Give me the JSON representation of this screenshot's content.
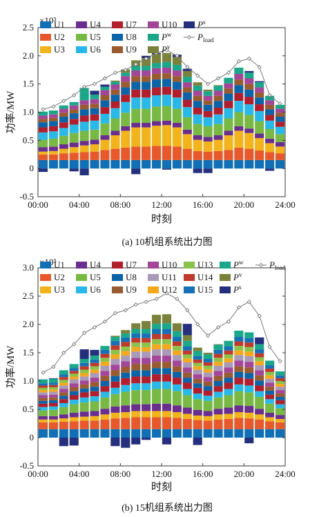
{
  "chart_data": [
    {
      "type": "bar",
      "stacked": true,
      "caption": "(a) 10机组系统出力图",
      "xlabel": "时刻",
      "ylabel": "功率/MW",
      "y_multiplier": "×10³",
      "ylim": [
        -0.5,
        2.5
      ],
      "y_ticks": [
        "-0.5",
        "0",
        "0.5",
        "1.0",
        "1.5",
        "2.0",
        "2.5"
      ],
      "x_ticks": [
        "00:00",
        "04:00",
        "08:00",
        "12:00",
        "16:00",
        "20:00",
        "24:00"
      ],
      "hours": 24,
      "legend_columns": 6,
      "series": [
        {
          "name": "U1",
          "color": "#0f6fb7",
          "values": [
            0.15,
            0.15,
            0.15,
            0.15,
            0.15,
            0.15,
            0.15,
            0.15,
            0.15,
            0.15,
            0.15,
            0.15,
            0.15,
            0.15,
            0.15,
            0.15,
            0.15,
            0.15,
            0.15,
            0.15,
            0.15,
            0.15,
            0.15,
            0.15
          ]
        },
        {
          "name": "U2",
          "color": "#e8582a",
          "values": [
            0.1,
            0.1,
            0.12,
            0.13,
            0.14,
            0.15,
            0.18,
            0.2,
            0.22,
            0.24,
            0.24,
            0.25,
            0.25,
            0.24,
            0.2,
            0.16,
            0.15,
            0.16,
            0.18,
            0.22,
            0.2,
            0.17,
            0.14,
            0.12
          ]
        },
        {
          "name": "U3",
          "color": "#f3b31b",
          "values": [
            0.05,
            0.06,
            0.08,
            0.1,
            0.12,
            0.13,
            0.18,
            0.24,
            0.3,
            0.34,
            0.34,
            0.36,
            0.37,
            0.34,
            0.26,
            0.2,
            0.18,
            0.2,
            0.26,
            0.3,
            0.28,
            0.22,
            0.16,
            0.12
          ]
        },
        {
          "name": "U4",
          "color": "#6a2f8e",
          "values": [
            0.08,
            0.08,
            0.08,
            0.08,
            0.08,
            0.08,
            0.08,
            0.08,
            0.08,
            0.08,
            0.08,
            0.08,
            0.08,
            0.08,
            0.08,
            0.08,
            0.08,
            0.08,
            0.08,
            0.08,
            0.08,
            0.08,
            0.08,
            0.08
          ]
        },
        {
          "name": "U5",
          "color": "#78b943",
          "values": [
            0.13,
            0.14,
            0.15,
            0.17,
            0.18,
            0.18,
            0.21,
            0.22,
            0.24,
            0.25,
            0.25,
            0.26,
            0.26,
            0.25,
            0.22,
            0.2,
            0.19,
            0.2,
            0.22,
            0.25,
            0.24,
            0.22,
            0.17,
            0.14
          ]
        },
        {
          "name": "U6",
          "color": "#29b9e8",
          "values": [
            0.13,
            0.13,
            0.14,
            0.15,
            0.16,
            0.16,
            0.17,
            0.18,
            0.19,
            0.2,
            0.2,
            0.2,
            0.2,
            0.2,
            0.18,
            0.17,
            0.16,
            0.17,
            0.18,
            0.2,
            0.19,
            0.18,
            0.15,
            0.13
          ]
        },
        {
          "name": "U7",
          "color": "#b21e2b",
          "values": [
            0.09,
            0.09,
            0.1,
            0.1,
            0.11,
            0.11,
            0.12,
            0.12,
            0.13,
            0.14,
            0.14,
            0.14,
            0.14,
            0.14,
            0.13,
            0.12,
            0.11,
            0.12,
            0.13,
            0.14,
            0.13,
            0.12,
            0.1,
            0.09
          ]
        },
        {
          "name": "U8",
          "color": "#0b63a8",
          "values": [
            0.09,
            0.09,
            0.1,
            0.1,
            0.11,
            0.11,
            0.12,
            0.12,
            0.13,
            0.14,
            0.14,
            0.14,
            0.14,
            0.14,
            0.13,
            0.12,
            0.11,
            0.12,
            0.13,
            0.14,
            0.13,
            0.12,
            0.1,
            0.09
          ]
        },
        {
          "name": "U9",
          "color": "#9a5b2e",
          "values": [
            0.06,
            0.06,
            0.07,
            0.07,
            0.08,
            0.08,
            0.09,
            0.09,
            0.1,
            0.1,
            0.1,
            0.1,
            0.1,
            0.1,
            0.09,
            0.09,
            0.08,
            0.09,
            0.09,
            0.1,
            0.1,
            0.09,
            0.08,
            0.07
          ]
        },
        {
          "name": "U10",
          "color": "#a34598",
          "values": [
            0.06,
            0.06,
            0.07,
            0.07,
            0.08,
            0.08,
            0.09,
            0.09,
            0.1,
            0.1,
            0.1,
            0.1,
            0.1,
            0.1,
            0.09,
            0.09,
            0.08,
            0.09,
            0.09,
            0.1,
            0.1,
            0.09,
            0.08,
            0.07
          ]
        },
        {
          "name": "Pw",
          "label_base": "P",
          "label_sup": "w",
          "color": "#1aa88a",
          "values": [
            0.07,
            0.07,
            0.06,
            0.06,
            0.22,
            0.08,
            0.06,
            0.05,
            0.06,
            0.08,
            0.08,
            0.09,
            0.1,
            0.1,
            0.1,
            0.09,
            0.08,
            0.09,
            0.1,
            0.11,
            0.1,
            0.09,
            0.08,
            0.07
          ]
        },
        {
          "name": "Pv",
          "label_base": "P",
          "label_sup": "v",
          "color": "#79813b",
          "values": [
            0,
            0,
            0,
            0,
            0,
            0,
            0,
            0.02,
            0.06,
            0.1,
            0.14,
            0.16,
            0.16,
            0.14,
            0.1,
            0.06,
            0.03,
            0.01,
            0,
            0,
            0,
            0,
            0,
            0
          ]
        },
        {
          "name": "Ps",
          "label_base": "P",
          "label_sup": "s",
          "color": "#24307d",
          "values": [
            -0.06,
            0,
            0,
            -0.05,
            -0.12,
            0.07,
            0.04,
            0,
            0,
            -0.1,
            0.04,
            0.02,
            -0.02,
            0.04,
            0.04,
            -0.08,
            -0.08,
            0,
            0,
            0,
            0.03,
            0.02,
            -0.04,
            0
          ]
        }
      ],
      "load": {
        "name": "Pload",
        "label_base": "P",
        "label_sub": "load",
        "values": [
          1.05,
          1.1,
          1.2,
          1.3,
          1.45,
          1.5,
          1.6,
          1.7,
          1.75,
          1.85,
          1.95,
          2.05,
          2.1,
          2.0,
          1.8,
          1.65,
          1.5,
          1.6,
          1.7,
          1.9,
          1.95,
          1.8,
          1.3,
          1.15
        ]
      }
    },
    {
      "type": "bar",
      "stacked": true,
      "caption": "(b) 15机组系统出力图",
      "xlabel": "时刻",
      "ylabel": "功率/MW",
      "y_multiplier": "×10³",
      "ylim": [
        -0.5,
        3.0
      ],
      "y_ticks": [
        "-0.5",
        "0",
        "0.5",
        "1.0",
        "1.5",
        "2.0",
        "2.5",
        "3.0"
      ],
      "x_ticks": [
        "00:00",
        "04:00",
        "08:00",
        "12:00",
        "16:00",
        "20:00",
        "24:00"
      ],
      "hours": 24,
      "legend_columns": 6,
      "series": [
        {
          "name": "U1",
          "color": "#0f6fb7",
          "values": [
            0.15,
            0.15,
            0.15,
            0.15,
            0.15,
            0.15,
            0.15,
            0.15,
            0.15,
            0.15,
            0.15,
            0.15,
            0.15,
            0.15,
            0.15,
            0.15,
            0.15,
            0.15,
            0.15,
            0.15,
            0.15,
            0.15,
            0.15,
            0.15
          ]
        },
        {
          "name": "U2",
          "color": "#e8582a",
          "values": [
            0.12,
            0.12,
            0.13,
            0.14,
            0.15,
            0.15,
            0.17,
            0.19,
            0.2,
            0.21,
            0.21,
            0.21,
            0.21,
            0.2,
            0.18,
            0.16,
            0.15,
            0.17,
            0.18,
            0.2,
            0.19,
            0.17,
            0.14,
            0.12
          ]
        },
        {
          "name": "U3",
          "color": "#f3b31b",
          "values": [
            0.05,
            0.05,
            0.06,
            0.07,
            0.07,
            0.08,
            0.09,
            0.1,
            0.1,
            0.11,
            0.11,
            0.11,
            0.11,
            0.1,
            0.09,
            0.08,
            0.08,
            0.09,
            0.09,
            0.1,
            0.1,
            0.09,
            0.07,
            0.06
          ]
        },
        {
          "name": "U4",
          "color": "#6a2f8e",
          "values": [
            0.06,
            0.06,
            0.07,
            0.08,
            0.09,
            0.09,
            0.1,
            0.11,
            0.12,
            0.12,
            0.12,
            0.13,
            0.13,
            0.12,
            0.11,
            0.1,
            0.09,
            0.1,
            0.11,
            0.12,
            0.12,
            0.1,
            0.08,
            0.07
          ]
        },
        {
          "name": "U5",
          "color": "#78b943",
          "values": [
            0.1,
            0.11,
            0.13,
            0.15,
            0.16,
            0.17,
            0.2,
            0.22,
            0.24,
            0.25,
            0.25,
            0.26,
            0.26,
            0.25,
            0.22,
            0.19,
            0.18,
            0.2,
            0.22,
            0.25,
            0.24,
            0.21,
            0.16,
            0.12
          ]
        },
        {
          "name": "U6",
          "color": "#29b9e8",
          "values": [
            0.06,
            0.06,
            0.07,
            0.08,
            0.09,
            0.09,
            0.1,
            0.11,
            0.12,
            0.12,
            0.12,
            0.13,
            0.13,
            0.12,
            0.11,
            0.1,
            0.09,
            0.1,
            0.11,
            0.12,
            0.12,
            0.1,
            0.08,
            0.07
          ]
        },
        {
          "name": "U7",
          "color": "#b21e2b",
          "values": [
            0.06,
            0.06,
            0.07,
            0.08,
            0.09,
            0.09,
            0.1,
            0.11,
            0.12,
            0.12,
            0.12,
            0.13,
            0.13,
            0.12,
            0.11,
            0.1,
            0.09,
            0.1,
            0.11,
            0.12,
            0.12,
            0.1,
            0.08,
            0.07
          ]
        },
        {
          "name": "U8",
          "color": "#0b63a8",
          "values": [
            0.05,
            0.05,
            0.06,
            0.07,
            0.07,
            0.08,
            0.09,
            0.1,
            0.1,
            0.11,
            0.11,
            0.11,
            0.11,
            0.1,
            0.09,
            0.08,
            0.08,
            0.09,
            0.09,
            0.1,
            0.1,
            0.09,
            0.07,
            0.06
          ]
        },
        {
          "name": "U9",
          "color": "#9a5b2e",
          "values": [
            0.05,
            0.05,
            0.06,
            0.07,
            0.07,
            0.08,
            0.09,
            0.1,
            0.1,
            0.11,
            0.11,
            0.11,
            0.11,
            0.1,
            0.09,
            0.08,
            0.08,
            0.09,
            0.09,
            0.1,
            0.1,
            0.09,
            0.07,
            0.06
          ]
        },
        {
          "name": "U10",
          "color": "#a34598",
          "values": [
            0.05,
            0.05,
            0.06,
            0.07,
            0.07,
            0.08,
            0.09,
            0.1,
            0.1,
            0.11,
            0.11,
            0.11,
            0.11,
            0.1,
            0.09,
            0.08,
            0.08,
            0.09,
            0.09,
            0.1,
            0.1,
            0.09,
            0.07,
            0.06
          ]
        },
        {
          "name": "U11",
          "color": "#a89ab8",
          "values": [
            0.05,
            0.05,
            0.06,
            0.07,
            0.07,
            0.08,
            0.09,
            0.1,
            0.1,
            0.11,
            0.11,
            0.11,
            0.11,
            0.1,
            0.09,
            0.08,
            0.08,
            0.09,
            0.09,
            0.1,
            0.1,
            0.09,
            0.07,
            0.06
          ]
        },
        {
          "name": "U12",
          "color": "#f5a81c",
          "values": [
            0.04,
            0.04,
            0.05,
            0.05,
            0.06,
            0.06,
            0.07,
            0.08,
            0.08,
            0.08,
            0.08,
            0.09,
            0.09,
            0.08,
            0.07,
            0.06,
            0.06,
            0.07,
            0.07,
            0.08,
            0.08,
            0.07,
            0.06,
            0.05
          ]
        },
        {
          "name": "U13",
          "color": "#8bc34a",
          "values": [
            0.04,
            0.04,
            0.05,
            0.05,
            0.06,
            0.06,
            0.07,
            0.08,
            0.08,
            0.08,
            0.08,
            0.09,
            0.09,
            0.08,
            0.07,
            0.06,
            0.06,
            0.07,
            0.07,
            0.08,
            0.08,
            0.07,
            0.06,
            0.05
          ]
        },
        {
          "name": "U14",
          "color": "#c0392b",
          "values": [
            0.04,
            0.04,
            0.05,
            0.05,
            0.06,
            0.06,
            0.07,
            0.08,
            0.08,
            0.08,
            0.08,
            0.09,
            0.09,
            0.08,
            0.07,
            0.06,
            0.06,
            0.07,
            0.07,
            0.08,
            0.08,
            0.07,
            0.06,
            0.05
          ]
        },
        {
          "name": "U15",
          "color": "#1570b5",
          "values": [
            0.04,
            0.04,
            0.05,
            0.05,
            0.06,
            0.06,
            0.07,
            0.08,
            0.08,
            0.08,
            0.08,
            0.09,
            0.09,
            0.08,
            0.07,
            0.06,
            0.06,
            0.07,
            0.07,
            0.08,
            0.08,
            0.07,
            0.06,
            0.05
          ]
        },
        {
          "name": "Pw",
          "label_base": "P",
          "label_sup": "w",
          "color": "#1aa88a",
          "values": [
            0.07,
            0.07,
            0.07,
            0.07,
            0.07,
            0.07,
            0.07,
            0.07,
            0.07,
            0.08,
            0.08,
            0.09,
            0.1,
            0.1,
            0.1,
            0.09,
            0.08,
            0.09,
            0.1,
            0.11,
            0.1,
            0.09,
            0.08,
            0.07
          ]
        },
        {
          "name": "Pv",
          "label_base": "P",
          "label_sup": "v",
          "color": "#79813b",
          "values": [
            0,
            0,
            0,
            0,
            0,
            0,
            0,
            0.02,
            0.06,
            0.1,
            0.14,
            0.16,
            0.16,
            0.14,
            0.1,
            0.06,
            0.03,
            0.01,
            0,
            0,
            0,
            0,
            0,
            0
          ]
        },
        {
          "name": "Ps",
          "label_base": "P",
          "label_sup": "s",
          "color": "#24307d",
          "values": [
            0,
            0.01,
            -0.15,
            -0.14,
            0.17,
            0.1,
            0,
            -0.15,
            -0.18,
            -0.12,
            -0.04,
            0,
            -0.12,
            0,
            0.2,
            -0.13,
            0,
            0,
            0,
            0,
            -0.1,
            0.12,
            0,
            0
          ]
        }
      ],
      "load": {
        "name": "Pload",
        "label_base": "P",
        "label_sub": "load",
        "values": [
          1.15,
          1.25,
          1.5,
          1.65,
          1.85,
          1.95,
          2.05,
          2.2,
          2.25,
          2.35,
          2.4,
          2.45,
          2.55,
          2.45,
          2.25,
          2.0,
          1.8,
          1.95,
          2.05,
          2.3,
          2.4,
          2.15,
          1.6,
          1.35
        ]
      }
    }
  ]
}
